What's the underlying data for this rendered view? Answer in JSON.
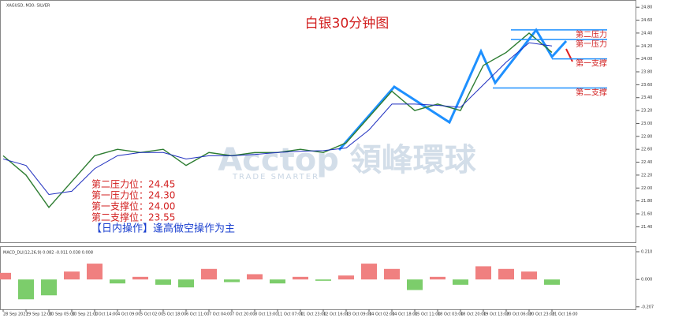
{
  "chart_data": [
    {
      "type": "line",
      "header": "XAGUSD, M30: SILVER",
      "title": "白银30分钟图",
      "watermark": "Acctop 領峰環球",
      "watermark_sub": "TRADE SMARTER",
      "categories": [
        "28 Sep 2021",
        "29 Sep 12:00",
        "30 Sep 05:00",
        "30 Sep 21:00",
        "1 Oct 14:00",
        "4 Oct 09:00",
        "5 Oct 02:00",
        "5 Oct 18:00",
        "6 Oct 11:00",
        "7 Oct 04:00",
        "7 Oct 20:00",
        "8 Oct 13:00",
        "11 Oct 07:00",
        "11 Oct 23:00",
        "12 Oct 16:00",
        "13 Oct 09:00",
        "14 Oct 02:00",
        "14 Oct 18:00",
        "15 Oct 11:00",
        "18 Oct 03:00",
        "18 Oct 20:00",
        "19 Oct 13:00",
        "20 Oct 06:00",
        "20 Oct 23:00",
        "21 Oct 16:00"
      ],
      "series": [
        {
          "color": "#2e7d32",
          "values": [
            22.5,
            22.2,
            21.7,
            22.1,
            22.5,
            22.6,
            22.55,
            22.6,
            22.35,
            22.55,
            22.5,
            22.55,
            22.55,
            22.6,
            22.55,
            22.7,
            23.1,
            23.5,
            23.2,
            23.3,
            23.2,
            23.9,
            24.1,
            24.4,
            24.1
          ]
        },
        {
          "color": "#1f2fbf",
          "values": [
            22.45,
            22.35,
            21.9,
            21.95,
            22.3,
            22.5,
            22.55,
            22.55,
            22.45,
            22.5,
            22.5,
            22.52,
            22.55,
            22.57,
            22.58,
            22.62,
            22.9,
            23.3,
            23.3,
            23.28,
            23.25,
            23.6,
            23.95,
            24.25,
            24.2
          ]
        }
      ],
      "ylim": [
        21.16,
        24.9
      ],
      "yticks": [
        {
          "value": 24.8,
          "label": "24.80"
        },
        {
          "value": 24.6,
          "label": "24.60"
        },
        {
          "value": 24.4,
          "label": "24.40"
        },
        {
          "value": 24.2,
          "label": "24.20"
        },
        {
          "value": 24.0,
          "label": "24.00"
        },
        {
          "value": 23.8,
          "label": "23.80"
        },
        {
          "value": 23.6,
          "label": "23.60"
        },
        {
          "value": 23.4,
          "label": "23.40"
        },
        {
          "value": 23.2,
          "label": "23.20"
        },
        {
          "value": 23.0,
          "label": "23.00"
        },
        {
          "value": 22.8,
          "label": "22.80"
        },
        {
          "value": 22.6,
          "label": "22.60"
        },
        {
          "value": 22.4,
          "label": "22.40"
        },
        {
          "value": 22.2,
          "label": "22.20"
        },
        {
          "value": 22.0,
          "label": "22.00"
        },
        {
          "value": 21.8,
          "label": "21.80"
        },
        {
          "value": 21.6,
          "label": "21.60"
        },
        {
          "value": 21.4,
          "label": "21.40"
        }
      ],
      "levels": [
        {
          "label": "第二压力",
          "text": "第二压力位：24.45",
          "value": 24.45,
          "color": "#1e90ff"
        },
        {
          "label": "第一压力",
          "text": "第一压力位：24.30",
          "value": 24.3,
          "color": "#1e90ff"
        },
        {
          "label": "第一支撑",
          "text": "第一支撑位：24.00",
          "value": 24.0,
          "color": "#1e90ff"
        },
        {
          "label": "第二支撑",
          "text": "第二支撑位：23.55",
          "value": 23.55,
          "color": "#1e90ff"
        }
      ],
      "strategy": "【日内操作】逢高做空操作为主"
    },
    {
      "type": "bar",
      "title": "MACD_DLI(12,26,9) 0.082 -0.011 0.038 0.008",
      "values": [
        0.05,
        -0.15,
        -0.12,
        0.06,
        0.12,
        -0.03,
        0.02,
        -0.04,
        -0.06,
        0.08,
        -0.02,
        0.04,
        -0.03,
        0.02,
        -0.01,
        0.03,
        0.12,
        0.08,
        -0.08,
        0.02,
        -0.04,
        0.1,
        0.08,
        0.06,
        -0.04
      ],
      "positive_color": "#f08080",
      "negative_color": "#7ccd6b",
      "ylim": [
        -0.22,
        0.24
      ],
      "yticks": [
        {
          "value": 0.21,
          "label": "0.210"
        },
        {
          "value": 0,
          "label": "0.000"
        },
        {
          "value": -0.207,
          "label": "-0.207"
        }
      ]
    }
  ]
}
